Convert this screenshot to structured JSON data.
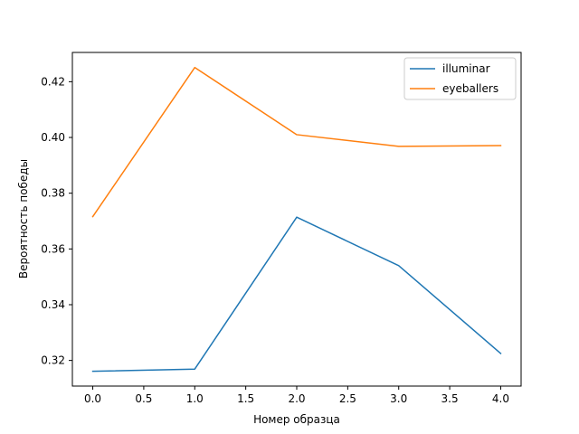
{
  "chart_data": {
    "type": "line",
    "xlabel": "Номер образца",
    "ylabel": "Вероятность победы",
    "xlim": [
      -0.2,
      4.2
    ],
    "ylim": [
      0.3108,
      0.4305
    ],
    "xticks": [
      0.0,
      0.5,
      1.0,
      1.5,
      2.0,
      2.5,
      3.0,
      3.5,
      4.0
    ],
    "xtick_labels": [
      "0.0",
      "0.5",
      "1.0",
      "1.5",
      "2.0",
      "2.5",
      "3.0",
      "3.5",
      "4.0"
    ],
    "yticks": [
      0.32,
      0.34,
      0.36,
      0.38,
      0.4,
      0.42
    ],
    "ytick_labels": [
      "0.32",
      "0.34",
      "0.36",
      "0.38",
      "0.40",
      "0.42"
    ],
    "grid": false,
    "legend_position": "top-right",
    "x": [
      0,
      1,
      2,
      3,
      4
    ],
    "series": [
      {
        "name": "illuminar",
        "color": "#1f77b4",
        "values": [
          0.3161,
          0.3169,
          0.3714,
          0.354,
          0.3225
        ]
      },
      {
        "name": "eyeballers",
        "color": "#ff7f0e",
        "values": [
          0.3716,
          0.4251,
          0.401,
          0.3968,
          0.3971
        ]
      }
    ]
  }
}
